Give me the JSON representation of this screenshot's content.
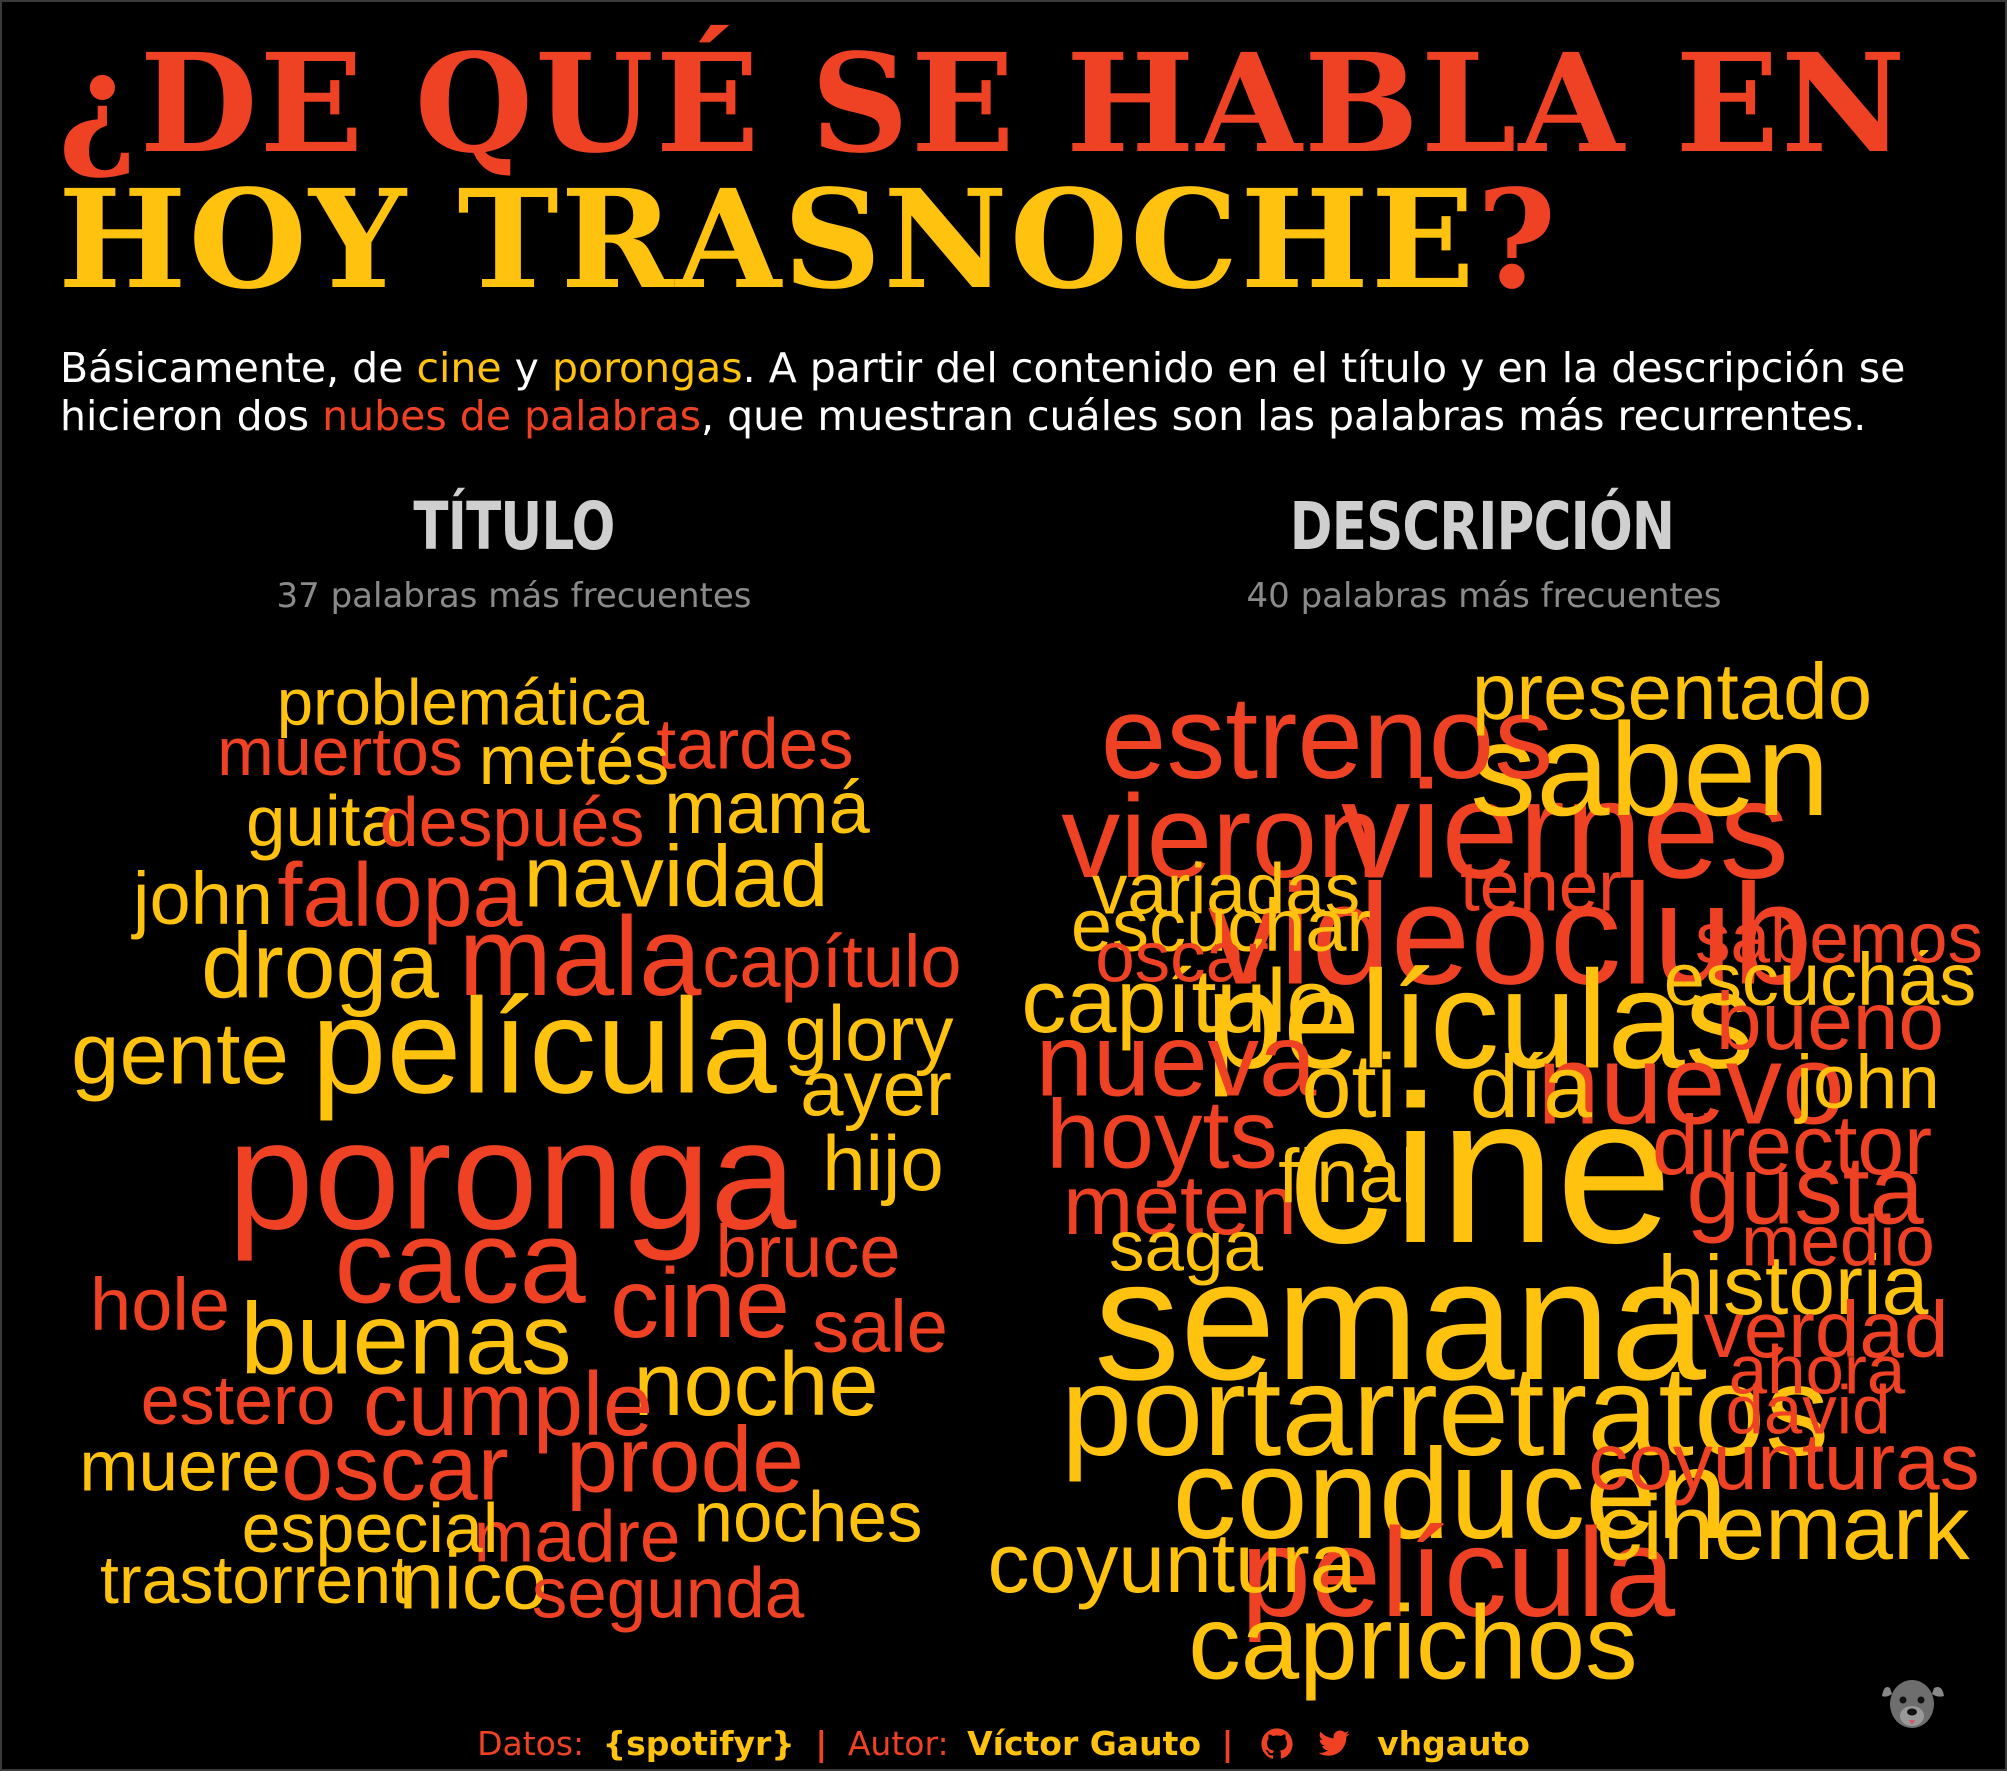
{
  "header": {
    "title_line1": "¿DE QUÉ SE HABLA EN",
    "title_line2_main": "HOY TRASNOCHE",
    "title_line2_mark": "?",
    "subtitle_parts": [
      {
        "text": "Básicamente, de ",
        "color": "#ffffff"
      },
      {
        "text": "cine",
        "color": "#FFC20E"
      },
      {
        "text": " y ",
        "color": "#ffffff"
      },
      {
        "text": "porongas",
        "color": "#FFC20E"
      },
      {
        "text": ". A partir del contenido en el título y en la descripción se hicieron dos ",
        "color": "#ffffff"
      },
      {
        "text": "nubes de palabras",
        "color": "#EF4123"
      },
      {
        "text": ", que muestran cuáles son las palabras más recurrentes.",
        "color": "#ffffff"
      }
    ]
  },
  "colors": {
    "red": "#EF4123",
    "yellow": "#FFC20E",
    "muted": "#8a8a8a"
  },
  "panels": {
    "left": {
      "title": "TÍTULO",
      "subtitle": "37 palabras más frecuentes"
    },
    "right": {
      "title": "DESCRIPCIÓN",
      "subtitle": "40 palabras más frecuentes"
    }
  },
  "chart_data": [
    {
      "type": "wordcloud",
      "title": "TÍTULO",
      "subtitle": "37 palabras más frecuentes",
      "words": [
        {
          "text": "poronga",
          "weight": 100,
          "color": "red"
        },
        {
          "text": "película",
          "weight": 87,
          "color": "yellow"
        },
        {
          "text": "caca",
          "weight": 77,
          "color": "red"
        },
        {
          "text": "mala",
          "weight": 72,
          "color": "red"
        },
        {
          "text": "buenas",
          "weight": 65,
          "color": "yellow"
        },
        {
          "text": "cine",
          "weight": 63,
          "color": "red"
        },
        {
          "text": "prode",
          "weight": 60,
          "color": "red"
        },
        {
          "text": "oscar",
          "weight": 60,
          "color": "red"
        },
        {
          "text": "droga",
          "weight": 60,
          "color": "yellow"
        },
        {
          "text": "falopa",
          "weight": 58,
          "color": "red"
        },
        {
          "text": "noche",
          "weight": 58,
          "color": "yellow"
        },
        {
          "text": "cumple",
          "weight": 58,
          "color": "red"
        },
        {
          "text": "navidad",
          "weight": 56,
          "color": "yellow"
        },
        {
          "text": "gente",
          "weight": 56,
          "color": "yellow"
        },
        {
          "text": "nico",
          "weight": 52,
          "color": "yellow"
        },
        {
          "text": "glory",
          "weight": 50,
          "color": "yellow"
        },
        {
          "text": "hijo",
          "weight": 50,
          "color": "yellow"
        },
        {
          "text": "ayer",
          "weight": 50,
          "color": "yellow"
        },
        {
          "text": "capítulo",
          "weight": 48,
          "color": "red"
        },
        {
          "text": "sale",
          "weight": 48,
          "color": "red"
        },
        {
          "text": "hole",
          "weight": 48,
          "color": "red"
        },
        {
          "text": "bruce",
          "weight": 48,
          "color": "red"
        },
        {
          "text": "john",
          "weight": 48,
          "color": "yellow"
        },
        {
          "text": "mamá",
          "weight": 48,
          "color": "yellow"
        },
        {
          "text": "madre",
          "weight": 47,
          "color": "red"
        },
        {
          "text": "segunda",
          "weight": 46,
          "color": "red"
        },
        {
          "text": "noches",
          "weight": 46,
          "color": "yellow"
        },
        {
          "text": "muere",
          "weight": 46,
          "color": "yellow"
        },
        {
          "text": "guita",
          "weight": 46,
          "color": "yellow"
        },
        {
          "text": "tardes",
          "weight": 46,
          "color": "red"
        },
        {
          "text": "estero",
          "weight": 45,
          "color": "red"
        },
        {
          "text": "especial",
          "weight": 45,
          "color": "yellow"
        },
        {
          "text": "después",
          "weight": 45,
          "color": "red"
        },
        {
          "text": "metés",
          "weight": 45,
          "color": "yellow"
        },
        {
          "text": "trastorrent",
          "weight": 44,
          "color": "yellow"
        },
        {
          "text": "muertos",
          "weight": 44,
          "color": "red"
        },
        {
          "text": "problemática",
          "weight": 42,
          "color": "yellow"
        }
      ]
    },
    {
      "type": "wordcloud",
      "title": "DESCRIPCIÓN",
      "subtitle": "40 palabras más frecuentes",
      "words": [
        {
          "text": "cine",
          "weight": 100,
          "color": "yellow"
        },
        {
          "text": "semana",
          "weight": 82,
          "color": "yellow"
        },
        {
          "text": "videoclub",
          "weight": 68,
          "color": "red"
        },
        {
          "text": "viernes",
          "weight": 66,
          "color": "red"
        },
        {
          "text": "películas",
          "weight": 66,
          "color": "yellow"
        },
        {
          "text": "saben",
          "weight": 63,
          "color": "yellow"
        },
        {
          "text": "portarretratos",
          "weight": 61,
          "color": "yellow"
        },
        {
          "text": "conducen",
          "weight": 61,
          "color": "yellow"
        },
        {
          "text": "película",
          "weight": 60,
          "color": "red"
        },
        {
          "text": "vieron",
          "weight": 56,
          "color": "red"
        },
        {
          "text": "estrenos",
          "weight": 56,
          "color": "red"
        },
        {
          "text": "nuevo",
          "weight": 54,
          "color": "red"
        },
        {
          "text": "caprichos",
          "weight": 50,
          "color": "yellow"
        },
        {
          "text": "nueva",
          "weight": 49,
          "color": "red"
        },
        {
          "text": "hoyts",
          "weight": 46,
          "color": "red"
        },
        {
          "text": "gusta",
          "weight": 46,
          "color": "red"
        },
        {
          "text": "cinemark",
          "weight": 44,
          "color": "yellow"
        },
        {
          "text": "capítulo",
          "weight": 43,
          "color": "yellow"
        },
        {
          "text": "oti",
          "weight": 43,
          "color": "yellow"
        },
        {
          "text": "día",
          "weight": 42,
          "color": "yellow"
        },
        {
          "text": "coyuntura",
          "weight": 40,
          "color": "yellow"
        },
        {
          "text": "director",
          "weight": 40,
          "color": "red"
        },
        {
          "text": "meten",
          "weight": 40,
          "color": "red"
        },
        {
          "text": "historia",
          "weight": 40,
          "color": "yellow"
        },
        {
          "text": "bueno",
          "weight": 39,
          "color": "red"
        },
        {
          "text": "presentado",
          "weight": 38,
          "color": "yellow"
        },
        {
          "text": "coyunturas",
          "weight": 38,
          "color": "red"
        },
        {
          "text": "verdad",
          "weight": 38,
          "color": "red"
        },
        {
          "text": "final",
          "weight": 36,
          "color": "yellow"
        },
        {
          "text": "john",
          "weight": 36,
          "color": "yellow"
        },
        {
          "text": "escuchar",
          "weight": 35,
          "color": "yellow"
        },
        {
          "text": "escuchás",
          "weight": 35,
          "color": "yellow"
        },
        {
          "text": "tener",
          "weight": 34,
          "color": "red"
        },
        {
          "text": "sabemos",
          "weight": 34,
          "color": "red"
        },
        {
          "text": "variadas",
          "weight": 34,
          "color": "yellow"
        },
        {
          "text": "oscar",
          "weight": 34,
          "color": "red"
        },
        {
          "text": "saga",
          "weight": 34,
          "color": "yellow"
        },
        {
          "text": "medio",
          "weight": 34,
          "color": "red"
        },
        {
          "text": "ahora",
          "weight": 33,
          "color": "red"
        },
        {
          "text": "david",
          "weight": 33,
          "color": "red"
        }
      ]
    }
  ],
  "footer": {
    "data_label": "Datos:",
    "data_value": "{spotifyr}",
    "sep": "|",
    "author_label": "Autor:",
    "author_value": "Víctor Gauto",
    "handle": "vhgauto"
  }
}
